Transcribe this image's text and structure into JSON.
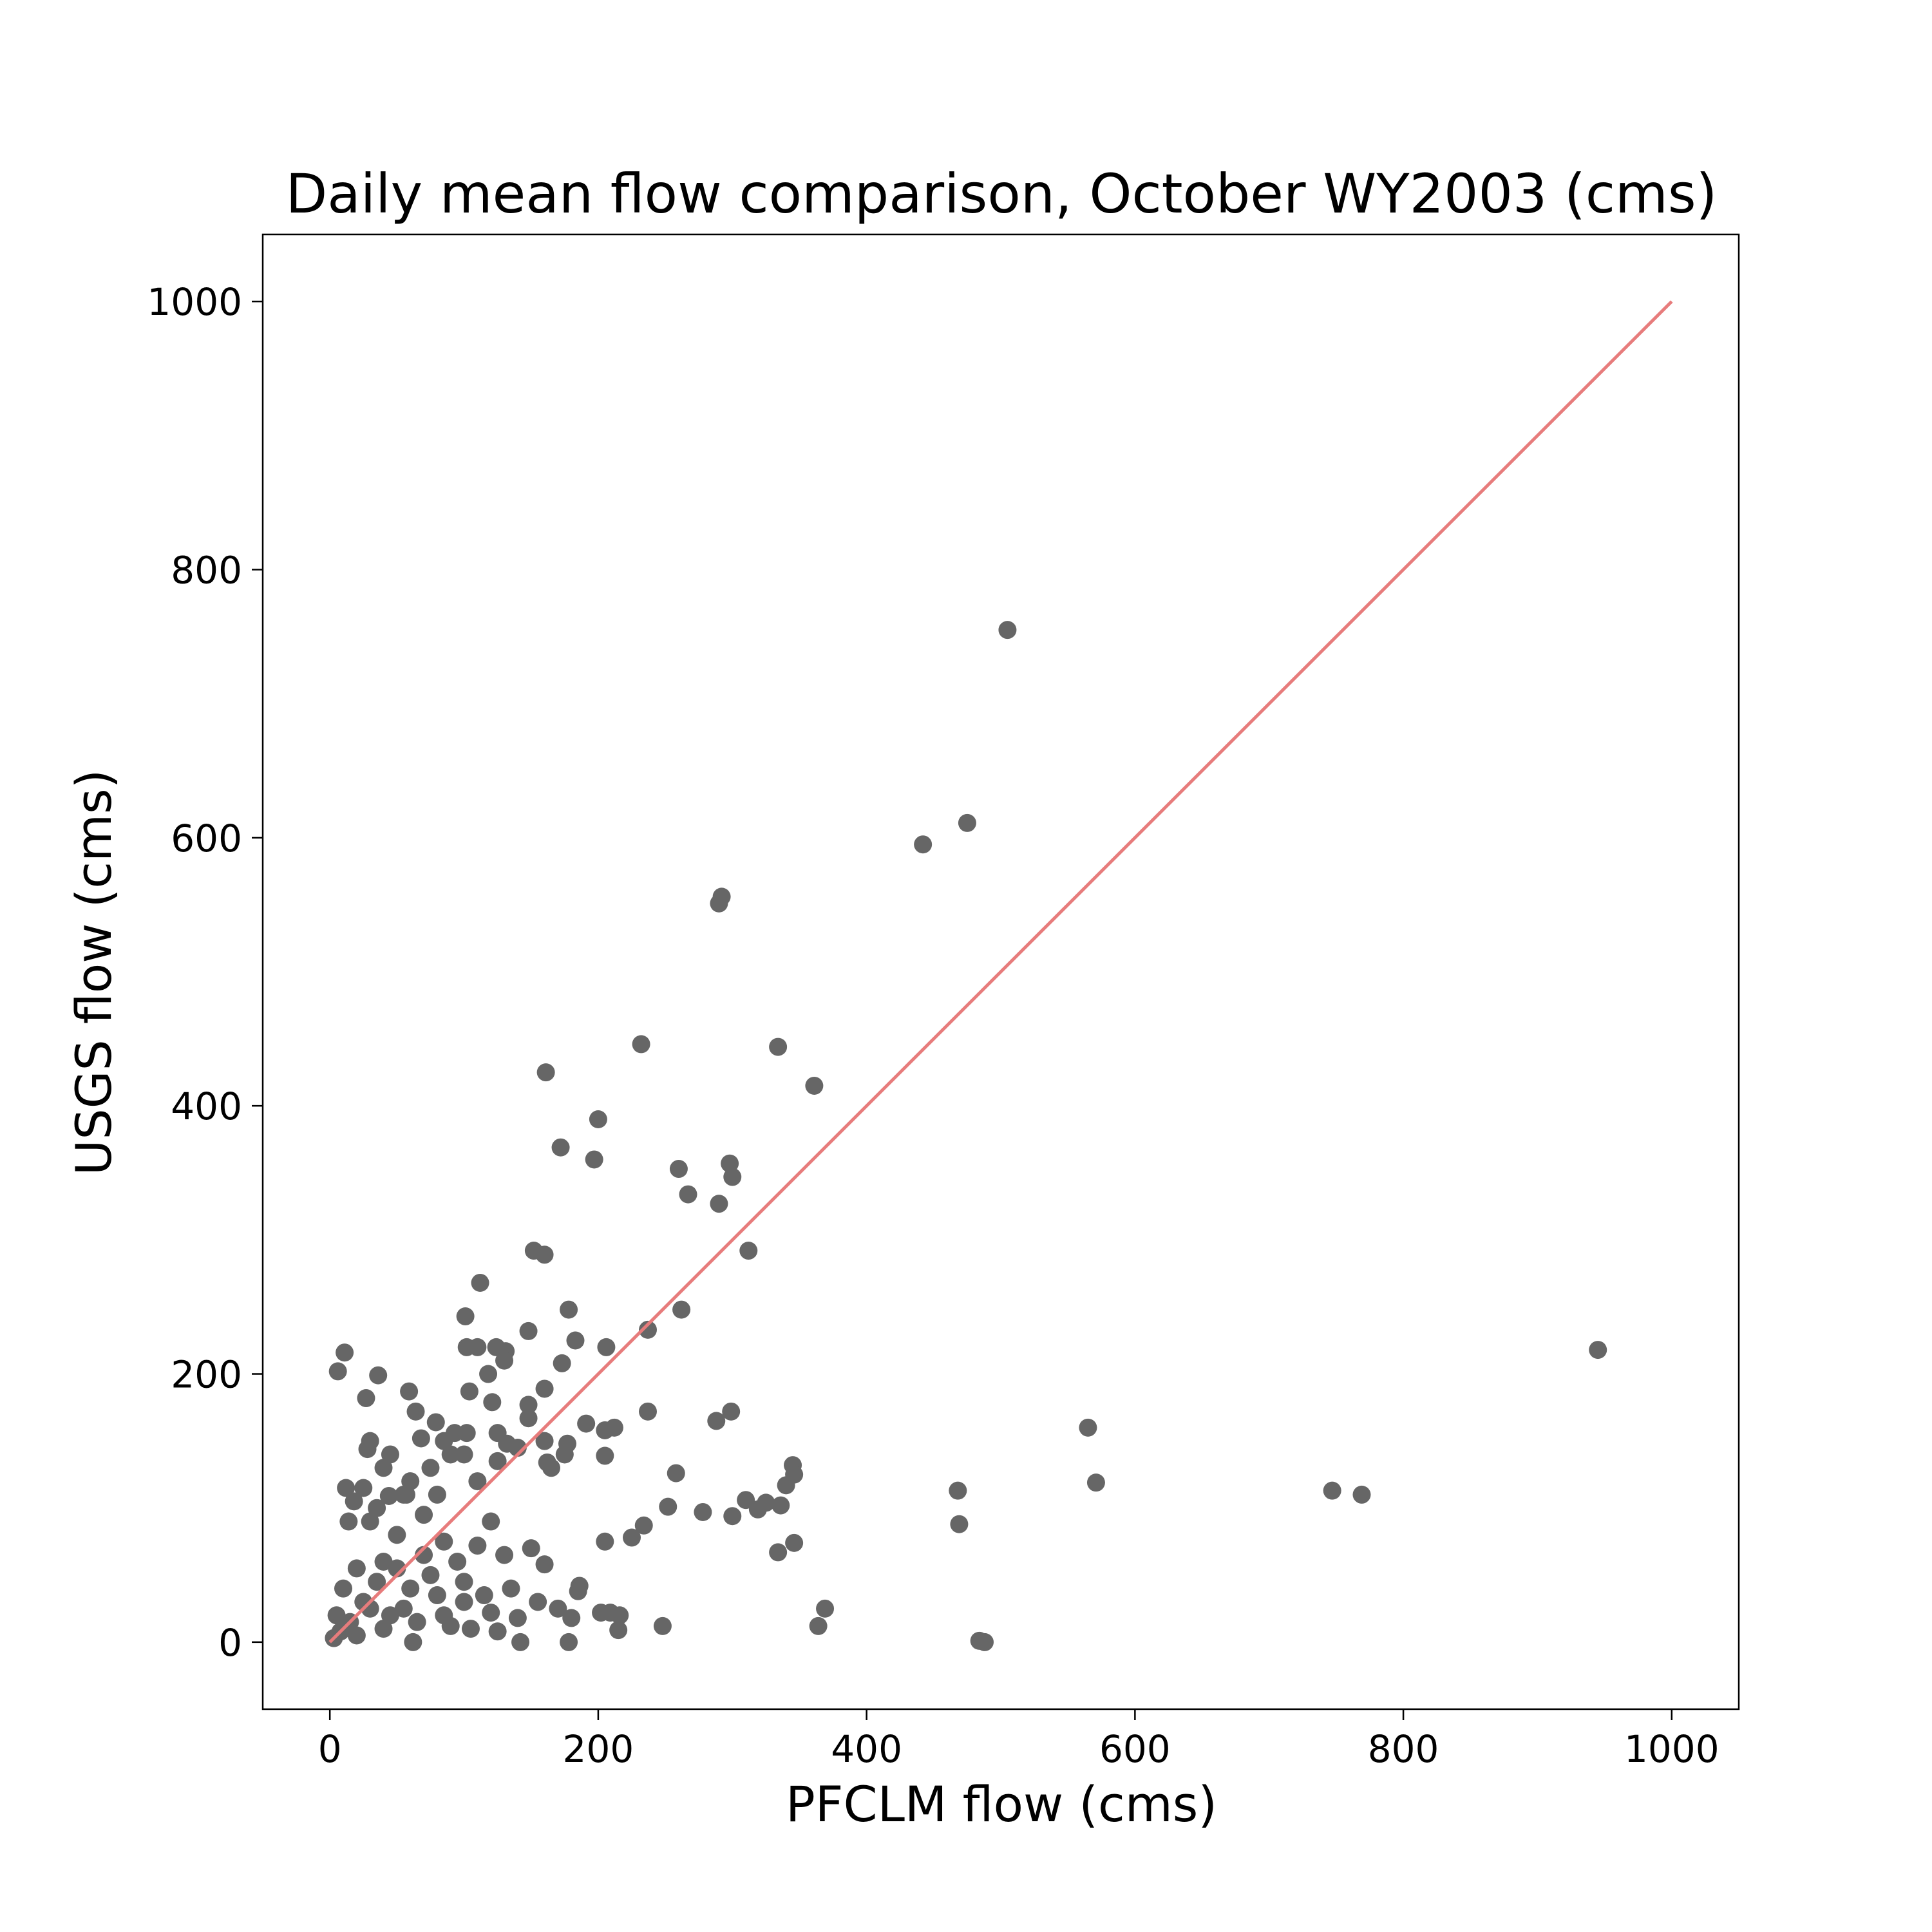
{
  "chart_data": {
    "type": "scatter",
    "title": "Daily mean flow comparison, October WY2003 (cms)",
    "xlabel": "PFCLM flow (cms)",
    "ylabel": "USGS flow (cms)",
    "xlim": [
      -50,
      1050
    ],
    "ylim": [
      -50,
      1050
    ],
    "x_ticks": [
      0,
      200,
      400,
      600,
      800,
      1000
    ],
    "y_ticks": [
      0,
      200,
      400,
      600,
      800,
      1000
    ],
    "x_tick_labels": [
      "0",
      "200",
      "400",
      "600",
      "800",
      "1000"
    ],
    "y_tick_labels": [
      "0",
      "200",
      "400",
      "600",
      "800",
      "1000"
    ],
    "grid": false,
    "reference_line": {
      "x": [
        0,
        1000
      ],
      "y": [
        0,
        1000
      ],
      "color": "#e77c7c"
    },
    "series": [
      {
        "color": "#666666",
        "points": [
          [
            505,
            755
          ],
          [
            475,
            611
          ],
          [
            442,
            595
          ],
          [
            292,
            556
          ],
          [
            290,
            551
          ],
          [
            232,
            446
          ],
          [
            334,
            444
          ],
          [
            361,
            415
          ],
          [
            161,
            425
          ],
          [
            200,
            390
          ],
          [
            172,
            369
          ],
          [
            197,
            360
          ],
          [
            260,
            353
          ],
          [
            298,
            357
          ],
          [
            300,
            347
          ],
          [
            267,
            334
          ],
          [
            290,
            327
          ],
          [
            152,
            292
          ],
          [
            160,
            289
          ],
          [
            312,
            292
          ],
          [
            112,
            268
          ],
          [
            178,
            248
          ],
          [
            262,
            248
          ],
          [
            101,
            243
          ],
          [
            148,
            232
          ],
          [
            237,
            233
          ],
          [
            183,
            225
          ],
          [
            102,
            220
          ],
          [
            110,
            220
          ],
          [
            124,
            220
          ],
          [
            206,
            220
          ],
          [
            11,
            216
          ],
          [
            131,
            217
          ],
          [
            945,
            218
          ],
          [
            6,
            202
          ],
          [
            36,
            199
          ],
          [
            118,
            200
          ],
          [
            173,
            208
          ],
          [
            130,
            210
          ],
          [
            104,
            187
          ],
          [
            160,
            189
          ],
          [
            59,
            187
          ],
          [
            27,
            182
          ],
          [
            121,
            179
          ],
          [
            148,
            177
          ],
          [
            64,
            172
          ],
          [
            148,
            167
          ],
          [
            237,
            172
          ],
          [
            299,
            172
          ],
          [
            288,
            165
          ],
          [
            79,
            164
          ],
          [
            565,
            160
          ],
          [
            191,
            163
          ],
          [
            212,
            160
          ],
          [
            205,
            158
          ],
          [
            93,
            156
          ],
          [
            102,
            156
          ],
          [
            125,
            156
          ],
          [
            68,
            152
          ],
          [
            30,
            150
          ],
          [
            132,
            148
          ],
          [
            28,
            144
          ],
          [
            177,
            148
          ],
          [
            205,
            139
          ],
          [
            162,
            134
          ],
          [
            345,
            132
          ],
          [
            346,
            125
          ],
          [
            340,
            117
          ],
          [
            258,
            126
          ],
          [
            571,
            119
          ],
          [
            57,
            110
          ],
          [
            44,
            109
          ],
          [
            468,
            113
          ],
          [
            747,
            113
          ],
          [
            769,
            110
          ],
          [
            310,
            106
          ],
          [
            325,
            104
          ],
          [
            319,
            99
          ],
          [
            336,
            102
          ],
          [
            278,
            97
          ],
          [
            300,
            94
          ],
          [
            252,
            101
          ],
          [
            469,
            88
          ],
          [
            234,
            87
          ],
          [
            225,
            78
          ],
          [
            205,
            75
          ],
          [
            346,
            74
          ],
          [
            334,
            67
          ],
          [
            14,
            90
          ],
          [
            120,
            90
          ],
          [
            186,
            42
          ],
          [
            185,
            38
          ],
          [
            180,
            18
          ],
          [
            202,
            22
          ],
          [
            209,
            22
          ],
          [
            216,
            20
          ],
          [
            369,
            25
          ],
          [
            364,
            12
          ],
          [
            248,
            12
          ],
          [
            215,
            9
          ],
          [
            484,
            1
          ],
          [
            488,
            0
          ],
          [
            178,
            0
          ],
          [
            142,
            0
          ],
          [
            62,
            0
          ],
          [
            30,
            90
          ],
          [
            50,
            80
          ],
          [
            70,
            95
          ],
          [
            85,
            75
          ],
          [
            95,
            60
          ],
          [
            110,
            72
          ],
          [
            130,
            65
          ],
          [
            150,
            70
          ],
          [
            160,
            58
          ],
          [
            40,
            60
          ],
          [
            20,
            55
          ],
          [
            60,
            40
          ],
          [
            80,
            35
          ],
          [
            100,
            30
          ],
          [
            120,
            22
          ],
          [
            140,
            18
          ],
          [
            90,
            12
          ],
          [
            45,
            20
          ],
          [
            25,
            30
          ],
          [
            10,
            40
          ],
          [
            15,
            15
          ],
          [
            5,
            20
          ],
          [
            8,
            8
          ],
          [
            3,
            3
          ],
          [
            35,
            45
          ],
          [
            55,
            25
          ],
          [
            75,
            50
          ],
          [
            100,
            45
          ],
          [
            115,
            35
          ],
          [
            135,
            40
          ],
          [
            155,
            30
          ],
          [
            170,
            25
          ],
          [
            65,
            15
          ],
          [
            85,
            20
          ],
          [
            105,
            10
          ],
          [
            125,
            8
          ],
          [
            40,
            10
          ],
          [
            20,
            5
          ],
          [
            30,
            25
          ],
          [
            50,
            55
          ],
          [
            70,
            65
          ],
          [
            60,
            120
          ],
          [
            75,
            130
          ],
          [
            90,
            140
          ],
          [
            40,
            130
          ],
          [
            25,
            115
          ],
          [
            18,
            105
          ],
          [
            12,
            115
          ],
          [
            35,
            100
          ],
          [
            55,
            110
          ],
          [
            80,
            110
          ],
          [
            110,
            120
          ],
          [
            125,
            135
          ],
          [
            140,
            145
          ],
          [
            160,
            150
          ],
          [
            165,
            130
          ],
          [
            175,
            140
          ],
          [
            100,
            140
          ],
          [
            85,
            150
          ],
          [
            45,
            140
          ]
        ]
      }
    ]
  }
}
